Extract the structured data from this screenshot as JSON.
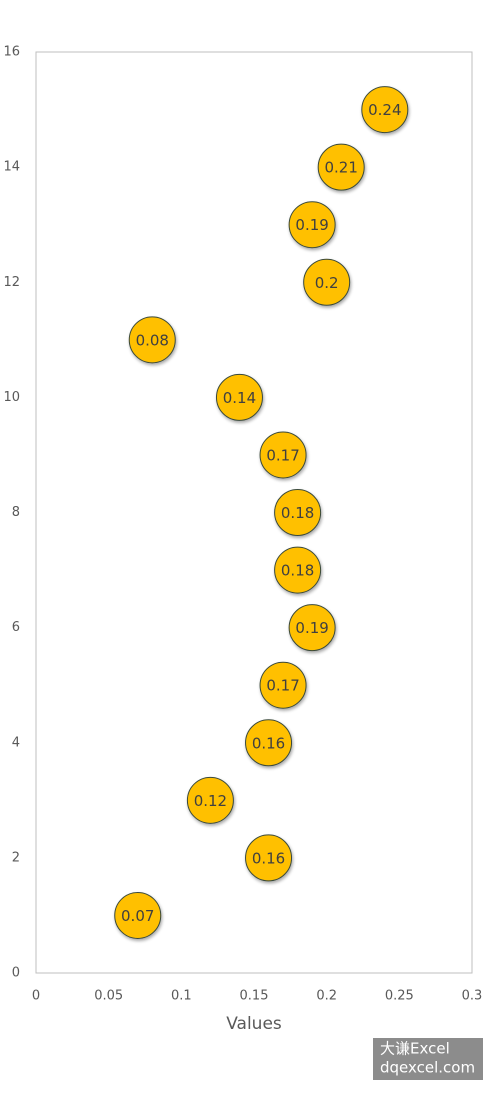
{
  "chart_data": {
    "type": "lollipop",
    "orientation": "horizontal",
    "x_label": "Values",
    "y": [
      1,
      2,
      3,
      4,
      5,
      6,
      7,
      8,
      9,
      10,
      11,
      12,
      13,
      14,
      15
    ],
    "values": [
      0.07,
      0.16,
      0.12,
      0.16,
      0.17,
      0.19,
      0.18,
      0.18,
      0.17,
      0.14,
      0.08,
      0.2,
      0.19,
      0.21,
      0.24
    ],
    "line_color": "#1f4e79",
    "marker_color": "#ffc000",
    "xlim": [
      0,
      0.3
    ],
    "xticks": [
      0,
      0.05,
      0.1,
      0.15,
      0.2,
      0.25,
      0.3
    ],
    "ylim": [
      0,
      16
    ],
    "yticks": [
      0,
      2,
      4,
      6,
      8,
      10,
      12,
      14,
      16
    ],
    "grid": false
  },
  "watermark": {
    "line1": "大谦Excel",
    "line2": "dqexcel.com"
  }
}
